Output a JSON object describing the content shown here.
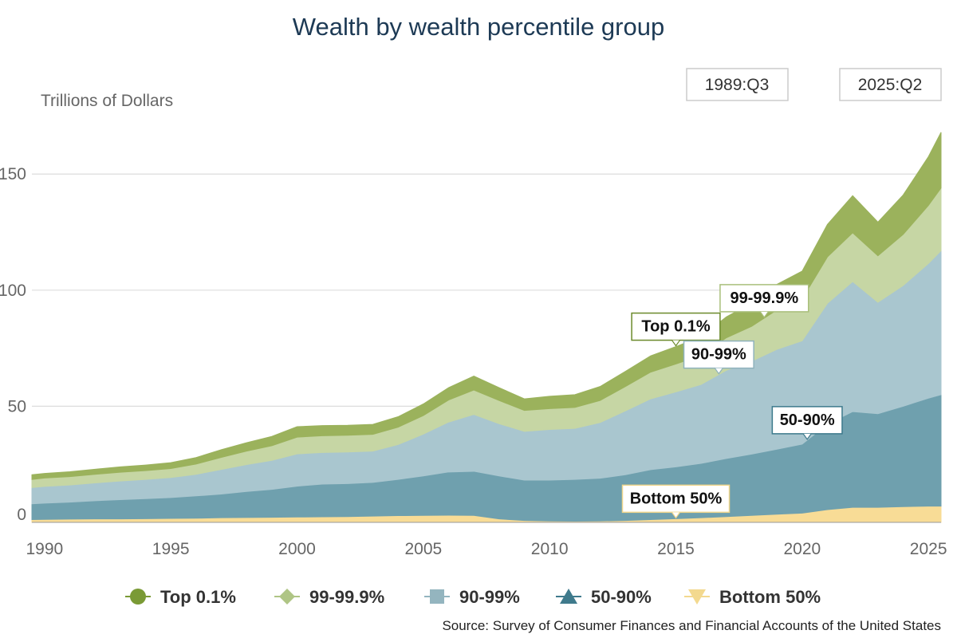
{
  "chart_data": {
    "type": "area",
    "stacked": true,
    "title": "Wealth by wealth percentile group",
    "ylabel": "Trillions of Dollars",
    "ylim": [
      0,
      170
    ],
    "xlim": [
      1989.5,
      2025.5
    ],
    "y_ticks": [
      0,
      50,
      100,
      150
    ],
    "x_ticks": [
      1990,
      1995,
      2000,
      2005,
      2010,
      2015,
      2020,
      2025
    ],
    "grid": true,
    "legend_position": "bottom",
    "range_selector": {
      "start": "1989:Q3",
      "end": "2025:Q2"
    },
    "source": "Source: Survey of Consumer Finances and Financial Accounts of the United States",
    "x": [
      1989.5,
      1990,
      1991,
      1992,
      1993,
      1994,
      1995,
      1996,
      1997,
      1998,
      1999,
      2000,
      2001,
      2002,
      2003,
      2004,
      2005,
      2006,
      2007,
      2008,
      2009,
      2010,
      2011,
      2012,
      2013,
      2014,
      2015,
      2016,
      2017,
      2018,
      2019,
      2020,
      2021,
      2022,
      2023,
      2024,
      2025,
      2025.5
    ],
    "series": [
      {
        "name": "Bottom 50%",
        "color": "#f8dc96",
        "values": [
          1.2,
          1.3,
          1.4,
          1.5,
          1.5,
          1.6,
          1.7,
          1.8,
          2.0,
          2.1,
          2.2,
          2.3,
          2.4,
          2.5,
          2.7,
          2.9,
          3.0,
          3.1,
          3.0,
          1.5,
          0.8,
          0.6,
          0.5,
          0.6,
          0.8,
          1.2,
          1.6,
          2.0,
          2.5,
          3.0,
          3.5,
          4.0,
          5.5,
          6.5,
          6.5,
          6.8,
          7.0,
          7.0
        ]
      },
      {
        "name": "50-90%",
        "color": "#6fa0ae",
        "values": [
          6.8,
          7.0,
          7.3,
          7.8,
          8.3,
          8.6,
          9.0,
          9.6,
          10.2,
          11.2,
          12.0,
          13.3,
          14.1,
          14.2,
          14.5,
          15.6,
          17.0,
          18.6,
          19.0,
          18.5,
          17.4,
          17.6,
          18.0,
          18.4,
          19.7,
          21.5,
          22.3,
          23.4,
          25.0,
          26.4,
          28.0,
          29.7,
          36.8,
          41.2,
          40.3,
          43.2,
          46.5,
          48.0
        ]
      },
      {
        "name": "90-99%",
        "color": "#a9c6cf",
        "values": [
          7.0,
          7.2,
          7.4,
          7.7,
          8.0,
          8.3,
          8.6,
          9.3,
          10.6,
          11.6,
          12.5,
          13.9,
          13.6,
          13.6,
          13.5,
          15.0,
          18.0,
          21.5,
          24.5,
          22.5,
          21.0,
          21.8,
          22.0,
          24.0,
          27.5,
          30.5,
          32.3,
          34.0,
          38.0,
          40.0,
          43.0,
          44.5,
          52.0,
          56.0,
          48.0,
          52.0,
          58.0,
          62.0
        ]
      },
      {
        "name": "99-99.9%",
        "color": "#c6d6a4",
        "values": [
          3.5,
          3.6,
          3.6,
          3.7,
          3.8,
          3.8,
          3.9,
          4.4,
          5.2,
          5.8,
          6.3,
          7.2,
          7.2,
          7.2,
          7.2,
          7.5,
          8.0,
          9.5,
          10.5,
          10.0,
          9.0,
          9.0,
          9.0,
          9.5,
          10.5,
          11.5,
          12.0,
          12.5,
          14.0,
          15.0,
          17.0,
          18.0,
          20.0,
          21.0,
          20.0,
          22.0,
          25.0,
          27.0
        ]
      },
      {
        "name": "Top 0.1%",
        "color": "#9bb25c",
        "values": [
          2.0,
          2.0,
          2.1,
          2.2,
          2.3,
          2.4,
          2.5,
          2.8,
          3.3,
          3.6,
          4.0,
          4.5,
          4.4,
          4.3,
          4.3,
          4.5,
          5.0,
          5.3,
          6.0,
          5.5,
          5.0,
          5.3,
          5.5,
          6.0,
          6.5,
          7.0,
          7.5,
          8.0,
          9.0,
          10.0,
          11.0,
          12.0,
          14.0,
          16.0,
          14.5,
          17.0,
          21.0,
          24.0
        ]
      }
    ],
    "annotations": [
      {
        "label": "Top 0.1%",
        "series": "Top 0.1%",
        "x": 2015,
        "border": "#6b8a2b"
      },
      {
        "label": "99-99.9%",
        "series": "99-99.9%",
        "x": 2018.5,
        "border": "#a9bf7a"
      },
      {
        "label": "90-99%",
        "series": "90-99%",
        "x": 2016.7,
        "border": "#8fb2bd"
      },
      {
        "label": "50-90%",
        "series": "50-90%",
        "x": 2020.2,
        "border": "#3d7a8c"
      },
      {
        "label": "Bottom 50%",
        "series": "Bottom 50%",
        "x": 2015,
        "border": "#f0d68c"
      }
    ],
    "legend": [
      {
        "label": "Top 0.1%",
        "color": "#7a9a35",
        "marker": "circle"
      },
      {
        "label": "99-99.9%",
        "color": "#afc585",
        "marker": "diamond"
      },
      {
        "label": "90-99%",
        "color": "#94b5bf",
        "marker": "square"
      },
      {
        "label": "50-90%",
        "color": "#3f7a8c",
        "marker": "triangle-up"
      },
      {
        "label": "Bottom 50%",
        "color": "#f3d98f",
        "marker": "triangle-down"
      }
    ]
  }
}
